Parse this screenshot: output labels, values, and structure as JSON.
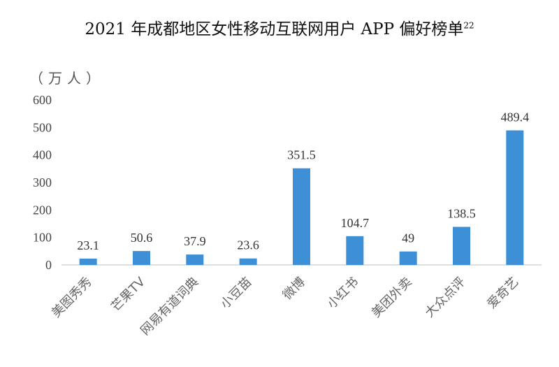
{
  "title": "2021 年成都地区女性移动互联网用户 APP 偏好榜单",
  "title_sup": "22",
  "unit_label": "（万人）",
  "colors": {
    "bar": "#3d8fd6",
    "axis": "#bfbfbf"
  },
  "chart_data": {
    "type": "bar",
    "title": "2021 年成都地区女性移动互联网用户 APP 偏好榜单",
    "ylabel": "（万人）",
    "ylim": [
      0,
      600
    ],
    "yticks": [
      0,
      100,
      200,
      300,
      400,
      500,
      600
    ],
    "grid": false,
    "categories": [
      "美图秀秀",
      "芒果TV",
      "网易有道词典",
      "小豆苗",
      "微博",
      "小红书",
      "美团外卖",
      "大众点评",
      "爱奇艺"
    ],
    "values": [
      23.1,
      50.6,
      37.9,
      23.6,
      351.5,
      104.7,
      49,
      138.5,
      489.4
    ]
  }
}
